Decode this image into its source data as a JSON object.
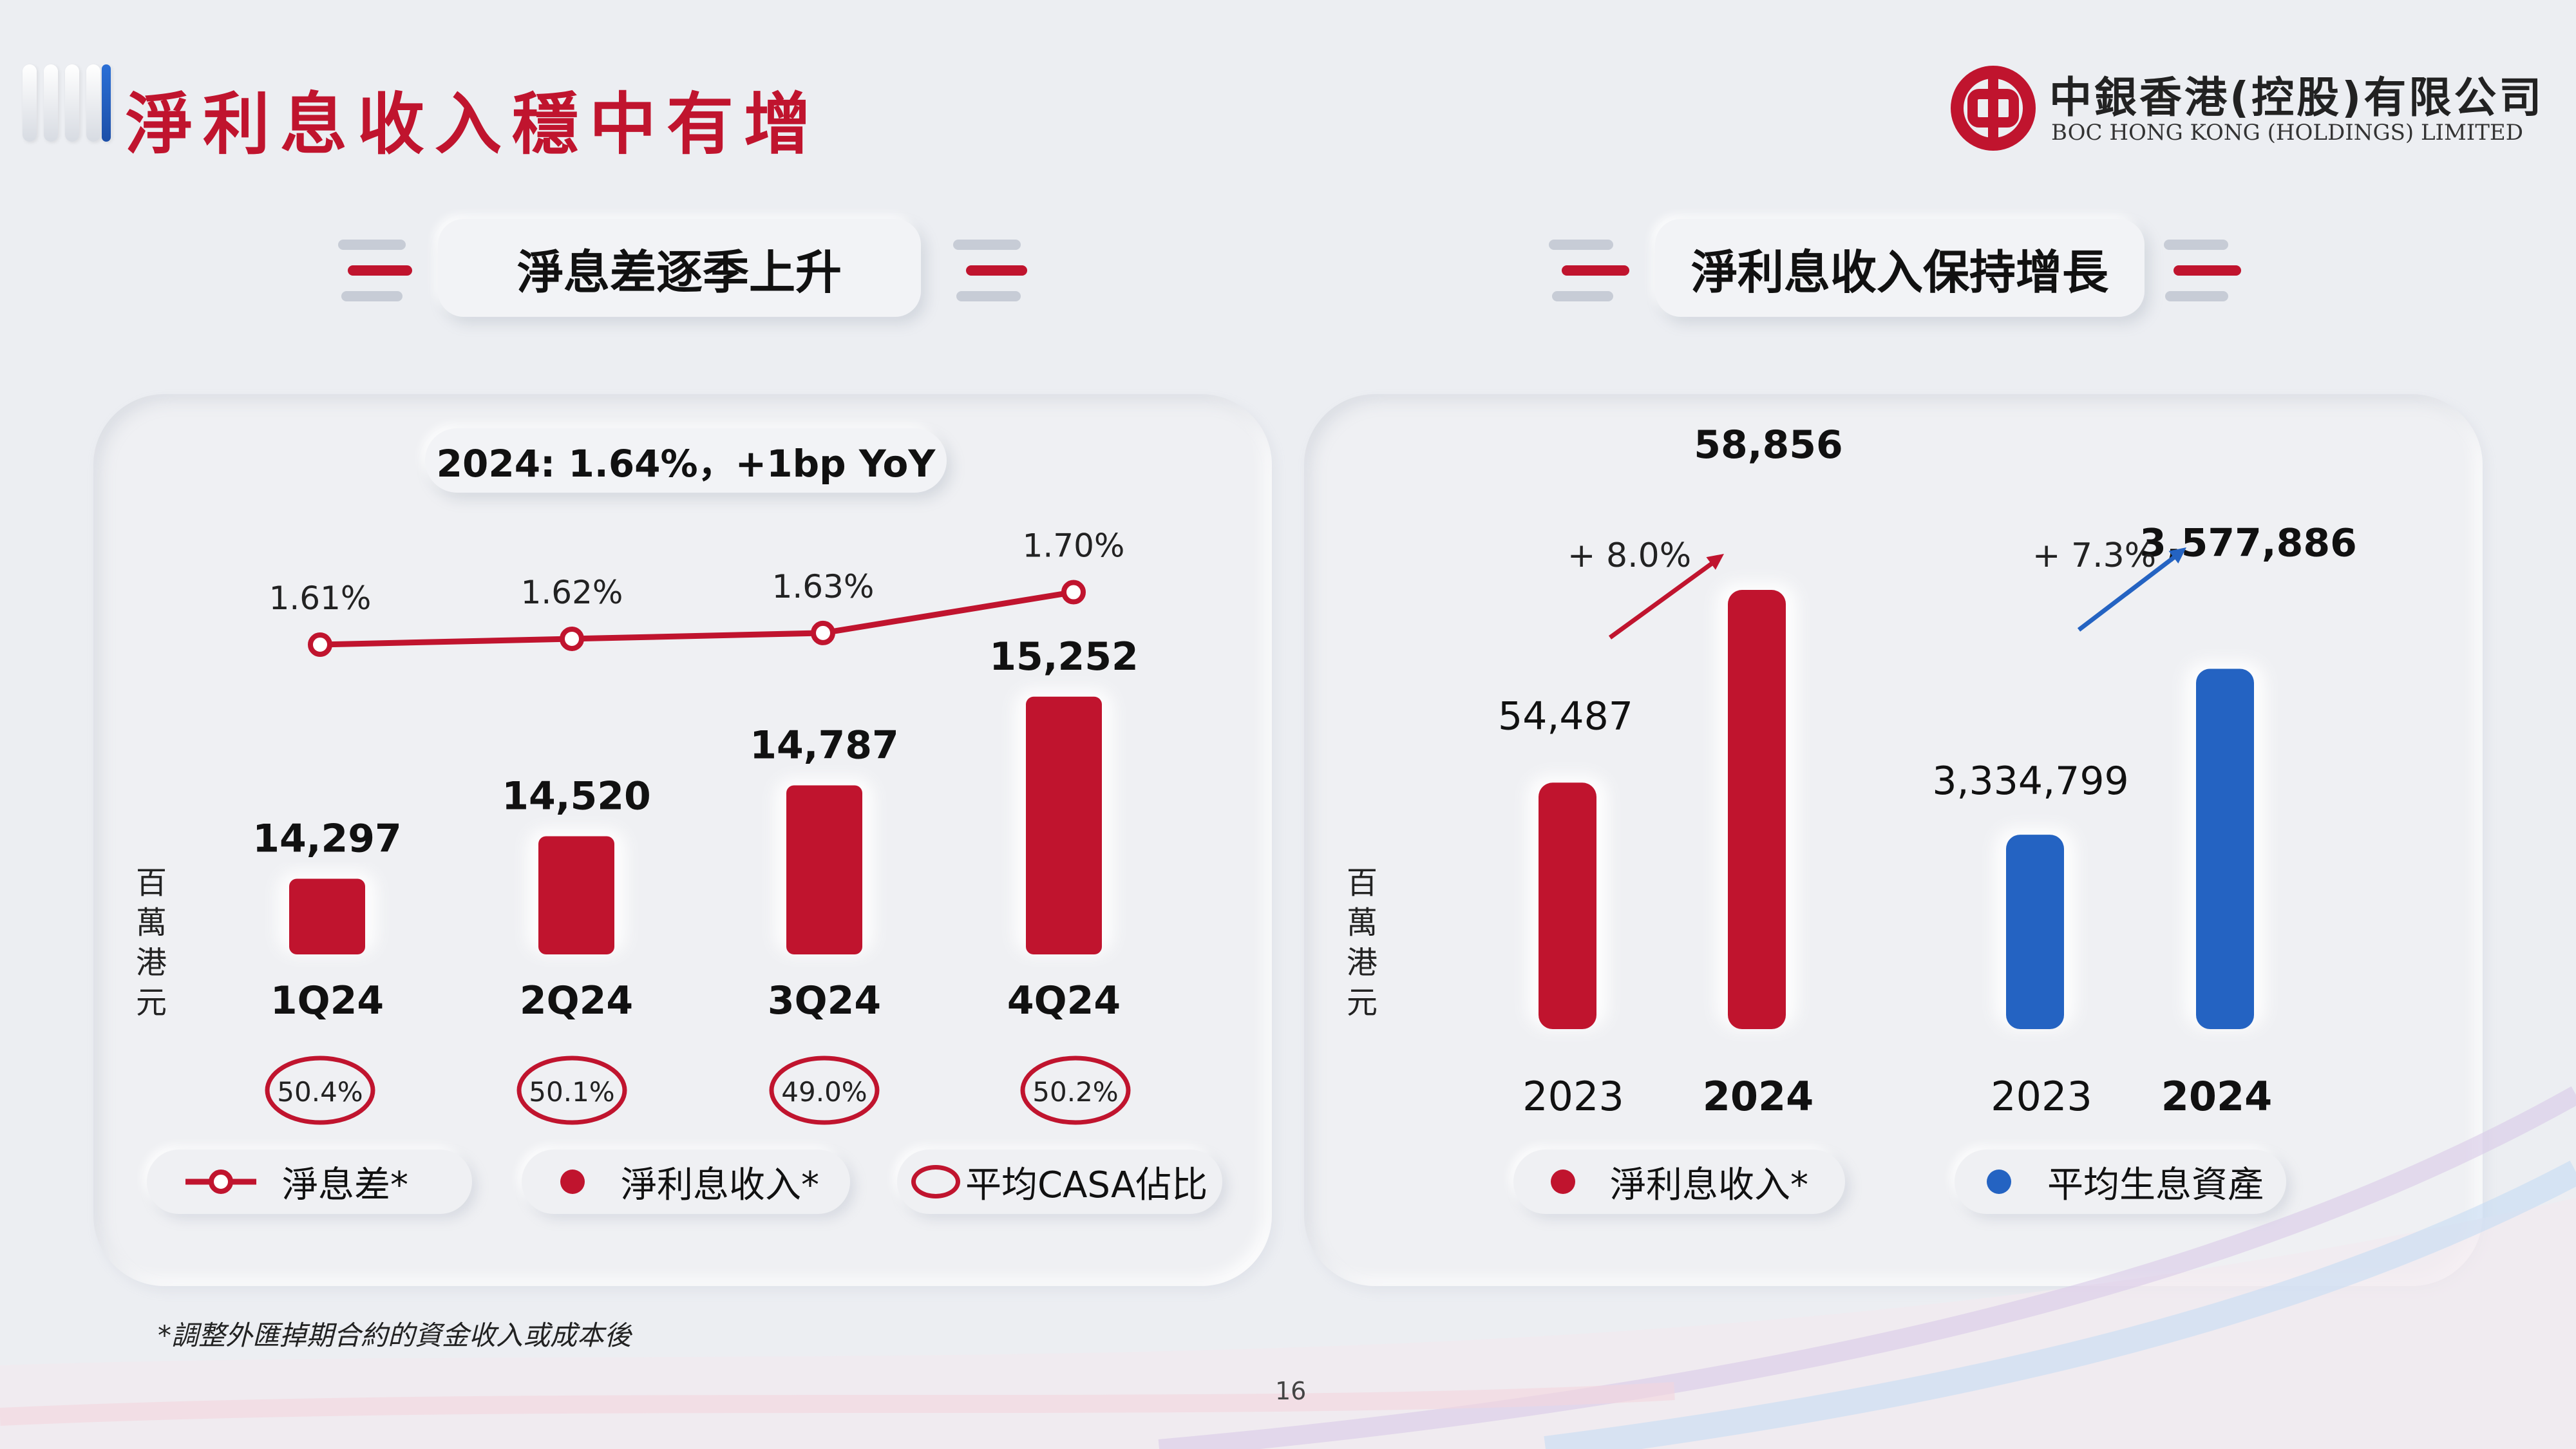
{
  "header": {
    "title": "淨利息收入穩中有增",
    "logo_cn": "中銀香港(控股)有限公司",
    "logo_en": "BOC HONG KONG (HOLDINGS) LIMITED"
  },
  "left_section": {
    "heading": "淨息差逐季上升",
    "summary_pill": "2024: 1.64%，+1bp YoY",
    "unit": [
      "百",
      "萬",
      "港",
      "元"
    ],
    "legend": [
      "淨息差*",
      "淨利息收入*",
      "平均CASA佔比"
    ]
  },
  "right_section": {
    "heading": "淨利息收入保持增長",
    "unit": [
      "百",
      "萬",
      "港",
      "元"
    ],
    "nii_growth": "+ 8.0%",
    "assets_growth": "+ 7.3%",
    "legend": [
      "淨利息收入*",
      "平均生息資產"
    ]
  },
  "footnote": "*調整外匯掉期合約的資金收入或成本後",
  "page_number": "16",
  "colors": {
    "red": "#c0142e",
    "blue": "#2463c2"
  },
  "chart_data": [
    {
      "type": "bar",
      "categories": [
        "1Q24",
        "2Q24",
        "3Q24",
        "4Q24"
      ],
      "series": [
        {
          "name": "淨利息收入*",
          "values": [
            14297,
            14520,
            14787,
            15252
          ],
          "labels": [
            "14,297",
            "14,520",
            "14,787",
            "15,252"
          ]
        },
        {
          "name": "淨息差*",
          "type": "line",
          "values": [
            1.61,
            1.62,
            1.63,
            1.7
          ],
          "labels": [
            "1.61%",
            "1.62%",
            "1.63%",
            "1.70%"
          ]
        },
        {
          "name": "平均CASA佔比",
          "type": "annotation",
          "values": [
            50.4,
            50.1,
            49.0,
            50.2
          ],
          "labels": [
            "50.4%",
            "50.1%",
            "49.0%",
            "50.2%"
          ]
        }
      ],
      "ylabel": "百萬港元"
    },
    {
      "type": "bar",
      "groups": [
        {
          "name": "淨利息收入*",
          "categories": [
            "2023",
            "2024"
          ],
          "values": [
            54487,
            58856
          ],
          "labels": [
            "54,487",
            "58,856"
          ]
        },
        {
          "name": "平均生息資產",
          "categories": [
            "2023",
            "2024"
          ],
          "values": [
            3334799,
            3577886
          ],
          "labels": [
            "3,334,799",
            "3,577,886"
          ]
        }
      ],
      "ylabel": "百萬港元"
    }
  ]
}
